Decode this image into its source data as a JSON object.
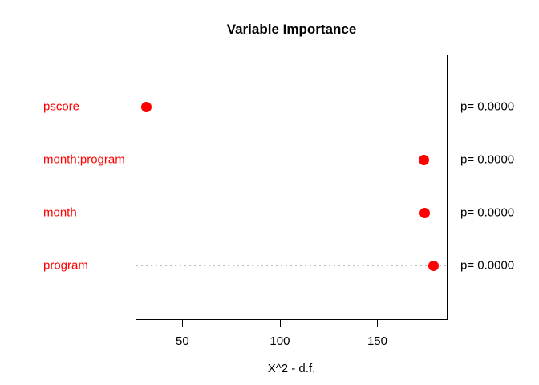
{
  "chart_data": {
    "type": "scatter",
    "subtype": "dotchart",
    "title": "Variable Importance",
    "xlabel": "X^2 - d.f.",
    "categories": [
      "pscore",
      "month:program",
      "month",
      "program"
    ],
    "values": [
      31.6,
      174.0,
      174.2,
      179.0
    ],
    "point_labels": [
      "p= 0.0000",
      "p= 0.0000",
      "p= 0.0000",
      "p= 0.0000"
    ],
    "xticks": [
      50,
      100,
      150
    ],
    "xlim": [
      26,
      186
    ],
    "grid": "dotted-horizontal",
    "legend": "none",
    "colors": {
      "point": "#ff0000",
      "category_label": "#ff0000",
      "gridline": "#bebebe",
      "text": "#000000",
      "background": "#ffffff"
    }
  }
}
